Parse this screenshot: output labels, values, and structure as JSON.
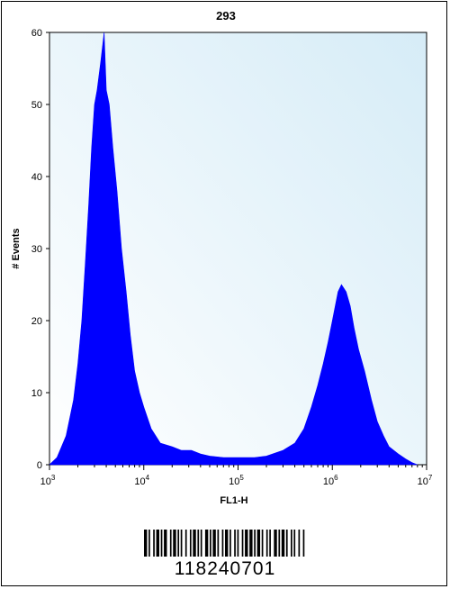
{
  "chart_data": {
    "type": "histogram",
    "title": "293",
    "xlabel": "FL1-H",
    "ylabel": "# Events",
    "x_scale": "log",
    "xlim": [
      1000,
      10000000
    ],
    "ylim": [
      0,
      60
    ],
    "x_ticks": [
      {
        "value": 1000,
        "base": "10",
        "exp": "3"
      },
      {
        "value": 10000,
        "base": "10",
        "exp": "4"
      },
      {
        "value": 100000,
        "base": "10",
        "exp": "5"
      },
      {
        "value": 1000000,
        "base": "10",
        "exp": "6"
      },
      {
        "value": 10000000,
        "base": "10",
        "exp": "7"
      }
    ],
    "y_ticks": [
      0,
      10,
      20,
      30,
      40,
      50,
      60
    ],
    "series": [
      {
        "color": "#0000ff",
        "points": [
          [
            1000,
            0
          ],
          [
            1200,
            1
          ],
          [
            1500,
            4
          ],
          [
            1800,
            9
          ],
          [
            2000,
            14
          ],
          [
            2200,
            20
          ],
          [
            2400,
            28
          ],
          [
            2600,
            36
          ],
          [
            2800,
            44
          ],
          [
            3000,
            50
          ],
          [
            3200,
            52
          ],
          [
            3500,
            56
          ],
          [
            3800,
            60
          ],
          [
            4000,
            52
          ],
          [
            4300,
            50
          ],
          [
            4700,
            44
          ],
          [
            5200,
            38
          ],
          [
            5800,
            30
          ],
          [
            6500,
            24
          ],
          [
            7200,
            18
          ],
          [
            8000,
            13
          ],
          [
            9000,
            10
          ],
          [
            10000,
            8
          ],
          [
            12000,
            5
          ],
          [
            15000,
            3
          ],
          [
            20000,
            2.5
          ],
          [
            25000,
            2
          ],
          [
            32000,
            2
          ],
          [
            40000,
            1.5
          ],
          [
            50000,
            1.2
          ],
          [
            70000,
            1
          ],
          [
            100000,
            1
          ],
          [
            150000,
            1
          ],
          [
            200000,
            1.2
          ],
          [
            300000,
            2
          ],
          [
            400000,
            3
          ],
          [
            500000,
            5
          ],
          [
            600000,
            8
          ],
          [
            700000,
            11
          ],
          [
            800000,
            14
          ],
          [
            900000,
            17
          ],
          [
            1000000,
            20
          ],
          [
            1150000,
            24
          ],
          [
            1250000,
            25
          ],
          [
            1400000,
            24
          ],
          [
            1550000,
            22
          ],
          [
            1700000,
            19
          ],
          [
            1900000,
            16
          ],
          [
            2200000,
            13
          ],
          [
            2600000,
            9
          ],
          [
            3000000,
            6
          ],
          [
            3500000,
            4
          ],
          [
            4000000,
            2.5
          ],
          [
            5000000,
            1.5
          ],
          [
            6000000,
            0.8
          ],
          [
            7000000,
            0.3
          ],
          [
            8000000,
            0
          ]
        ]
      }
    ]
  },
  "barcode": {
    "number": "118240701",
    "pattern": [
      2,
      1,
      1,
      2,
      1,
      1,
      2,
      1,
      1,
      1,
      2,
      2,
      1,
      1,
      2,
      1,
      1,
      1,
      1,
      2,
      1,
      2,
      1,
      1,
      2,
      1,
      1,
      1,
      1,
      2,
      2,
      1,
      1,
      1,
      2,
      1,
      1,
      2,
      1,
      1,
      2,
      1,
      1,
      2,
      1,
      1,
      1,
      2,
      1,
      1,
      2,
      1,
      2,
      1,
      1,
      1,
      2,
      1,
      1,
      2,
      1,
      1,
      1,
      2,
      2,
      1,
      1,
      1,
      2,
      1,
      1,
      2,
      1,
      1,
      1,
      2,
      1,
      2,
      1,
      1
    ]
  }
}
